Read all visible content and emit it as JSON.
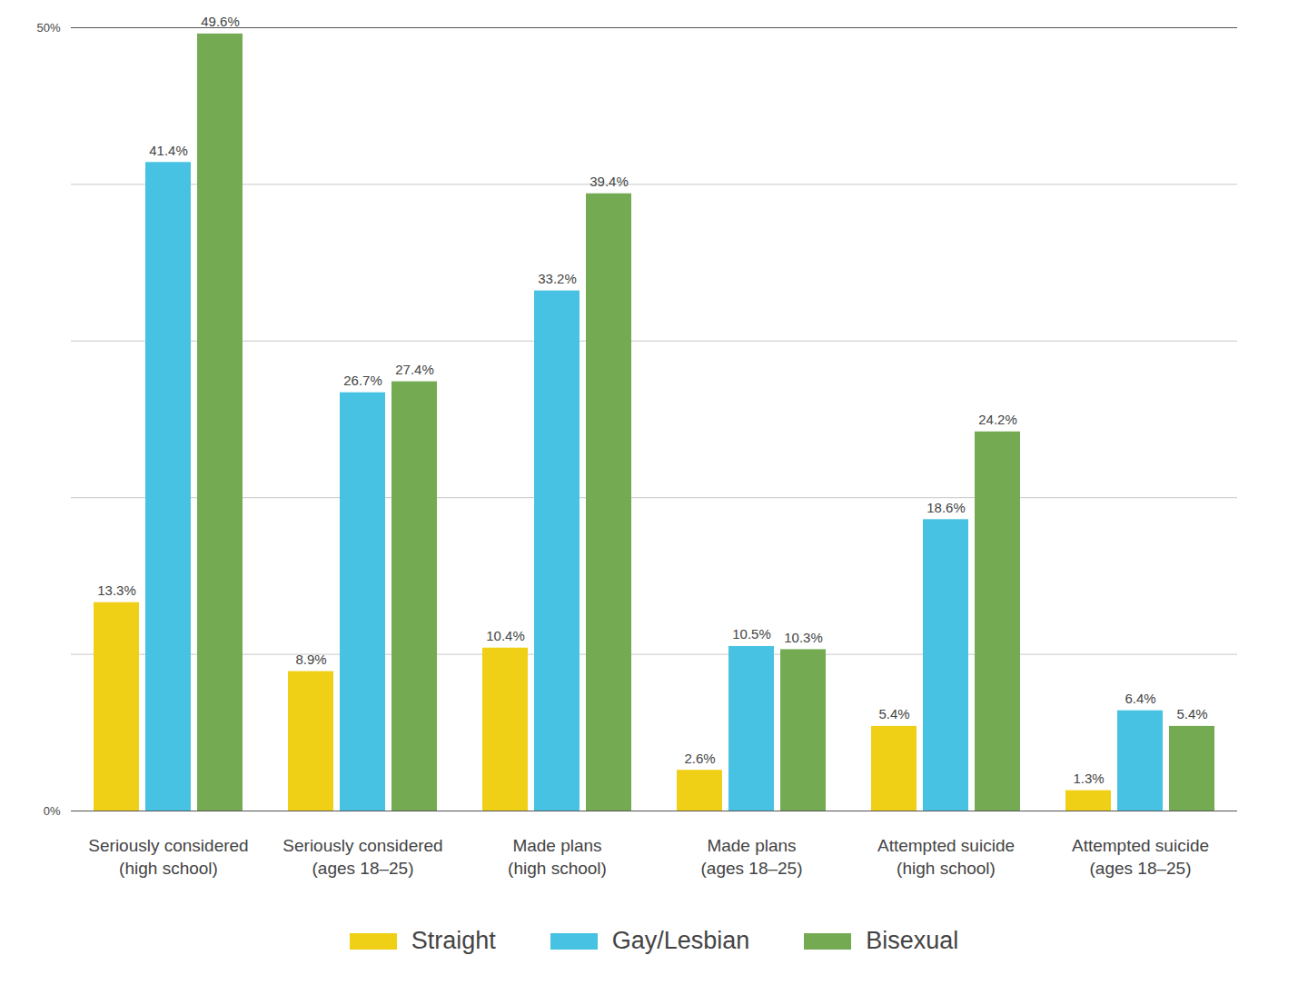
{
  "chart_data": {
    "type": "bar",
    "categories": [
      "Seriously considered (high school)",
      "Seriously considered (ages 18–25)",
      "Made plans (high school)",
      "Made plans (ages 18–25)",
      "Attempted suicide (high school)",
      "Attempted suicide (ages 18–25)"
    ],
    "series": [
      {
        "name": "Straight",
        "color": "#f0d016",
        "values": [
          13.3,
          8.9,
          10.4,
          2.6,
          5.4,
          1.3
        ],
        "value_labels": [
          "13.3%",
          "8.9%",
          "10.4%",
          "2.6%",
          "5.4%",
          "1.3%"
        ]
      },
      {
        "name": "Gay/Lesbian",
        "color": "#47c2e2",
        "values": [
          41.4,
          26.7,
          33.2,
          10.5,
          18.6,
          6.4
        ],
        "value_labels": [
          "41.4%",
          "26.7%",
          "33.2%",
          "10.5%",
          "18.6%",
          "6.4%"
        ]
      },
      {
        "name": "Bisexual",
        "color": "#74ab52",
        "values": [
          49.6,
          27.4,
          39.4,
          10.3,
          24.2,
          5.4
        ],
        "value_labels": [
          "49.6%",
          "27.4%",
          "39.4%",
          "10.3%",
          "24.2%",
          "5.4%"
        ]
      }
    ],
    "ylim": [
      0,
      50
    ],
    "yticks": [
      {
        "value": 0,
        "label": "0%"
      },
      {
        "value": 10,
        "label": null
      },
      {
        "value": 20,
        "label": null
      },
      {
        "value": 30,
        "label": null
      },
      {
        "value": 40,
        "label": null
      },
      {
        "value": 50,
        "label": "50%"
      }
    ],
    "grid": true,
    "data_labels": true,
    "legend": "bottom"
  }
}
